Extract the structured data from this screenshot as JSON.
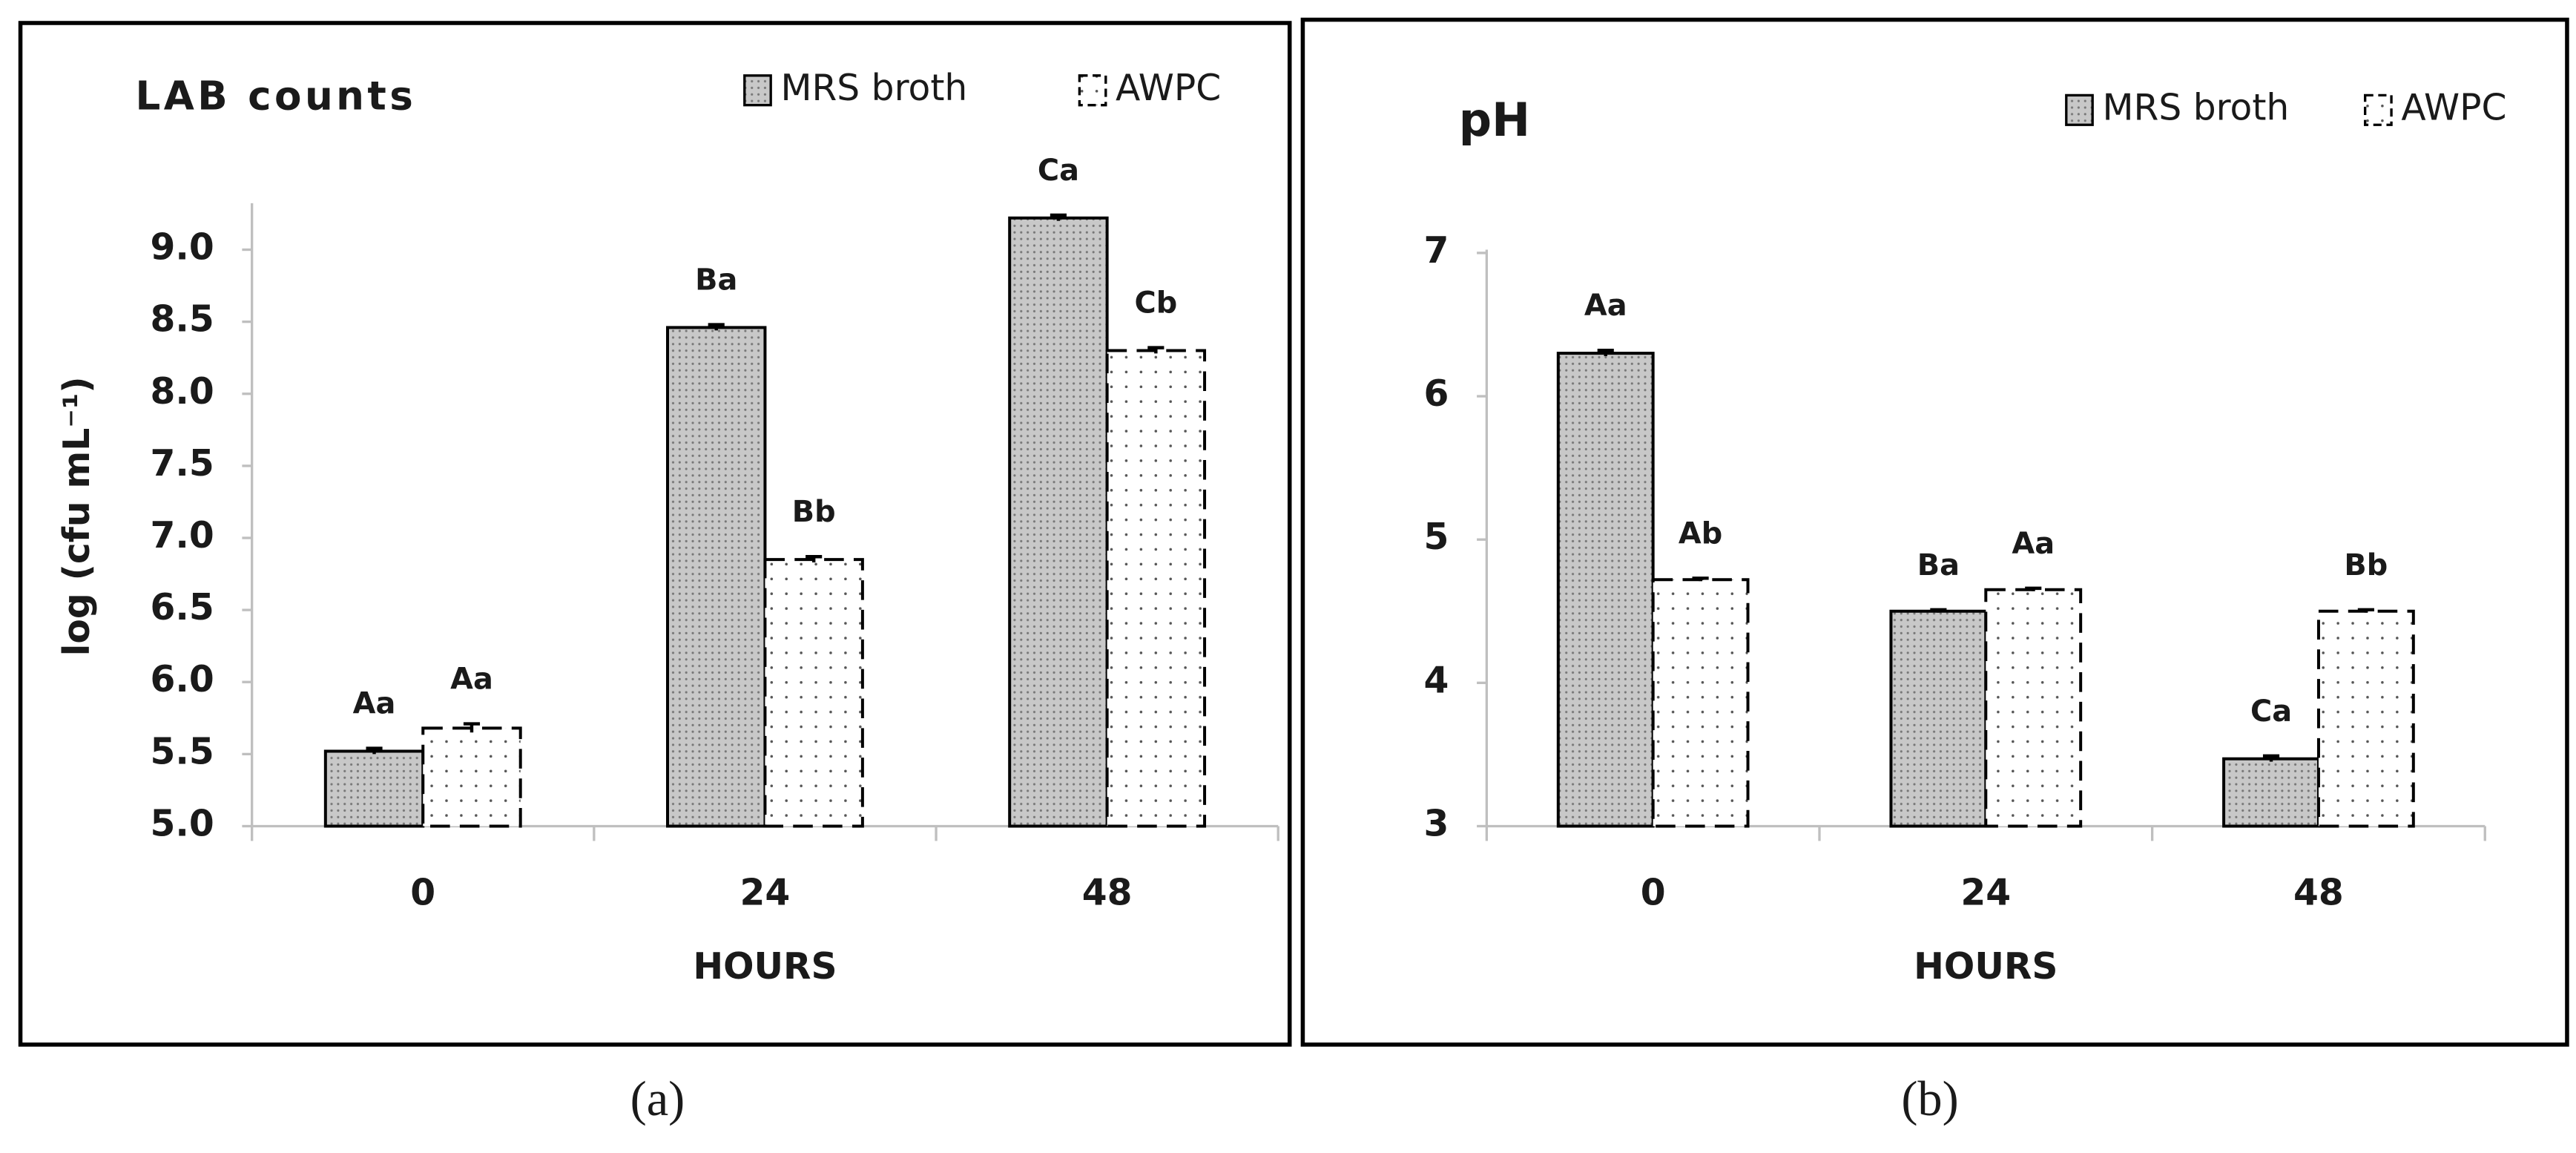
{
  "chart_data": [
    {
      "type": "bar",
      "title": "LAB counts",
      "ylabel": "log (cfu mL⁻¹)",
      "xlabel": "HOURS",
      "caption": "(a)",
      "categories": [
        "0",
        "24",
        "48"
      ],
      "series": [
        {
          "name": "MRS broth",
          "color": "#c8c8c8",
          "line_style": "solid",
          "values": [
            5.52,
            8.46,
            9.22
          ],
          "errors": [
            0.02,
            0.02,
            0.02
          ],
          "letters": [
            "Aa",
            "Ba",
            "Ca"
          ]
        },
        {
          "name": "AWPC",
          "color": "#ffffff",
          "line_style": "dashed",
          "values": [
            5.68,
            6.85,
            8.3
          ],
          "errors": [
            0.03,
            0.02,
            0.02
          ],
          "letters": [
            "Aa",
            "Bb",
            "Cb"
          ]
        }
      ],
      "ylim": [
        5.0,
        9.3
      ],
      "yticks": [
        {
          "value": 5,
          "label": "5.0"
        },
        5.5,
        {
          "value": 6,
          "label": "6.0"
        },
        6.5,
        {
          "value": 7,
          "label": "7.0"
        },
        7.5,
        {
          "value": 8,
          "label": "8.0"
        },
        8.5,
        {
          "value": 9,
          "label": "9.0"
        }
      ],
      "legend": "upper right",
      "grid": false
    },
    {
      "type": "bar",
      "title": "pH",
      "xlabel": "HOURS",
      "caption": "(b)",
      "categories": [
        "0",
        "24",
        "48"
      ],
      "series": [
        {
          "name": "MRS broth",
          "color": "#c8c8c8",
          "line_style": "solid",
          "values": [
            6.3,
            4.5,
            3.47
          ],
          "errors": [
            0.02,
            0.01,
            0.02
          ],
          "letters": [
            "Aa",
            "Ba",
            "Ca"
          ]
        },
        {
          "name": "AWPC",
          "color": "#ffffff",
          "line_style": "dashed",
          "values": [
            4.72,
            4.65,
            4.5
          ],
          "errors": [
            0.01,
            0.01,
            0.01
          ],
          "letters": [
            "Ab",
            "Aa",
            "Bb"
          ]
        }
      ],
      "ylim": [
        3,
        7
      ],
      "yticks": [
        3,
        4,
        5,
        6,
        7
      ],
      "legend": "upper right",
      "grid": false
    }
  ]
}
